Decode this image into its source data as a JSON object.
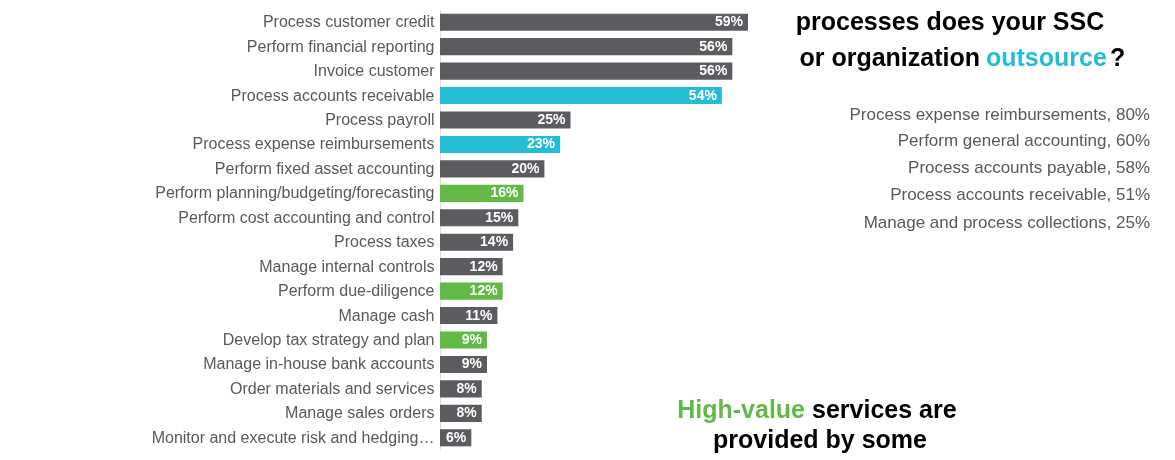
{
  "chart_data": {
    "type": "bar",
    "orientation": "horizontal",
    "categories": [
      "Process customer credit",
      "Perform financial reporting",
      "Invoice customer",
      "Process accounts receivable",
      "Process payroll",
      "Process expense reimbursements",
      "Perform fixed asset accounting",
      "Perform planning/budgeting/forecasting",
      "Perform cost accounting and control",
      "Process taxes",
      "Manage internal controls",
      "Perform due-diligence",
      "Manage cash",
      "Develop tax strategy and plan",
      "Manage in-house bank accounts",
      "Order materials and services",
      "Manage sales orders",
      "Monitor and execute risk and hedging…"
    ],
    "values": [
      59,
      56,
      56,
      54,
      25,
      23,
      20,
      16,
      15,
      14,
      12,
      12,
      11,
      9,
      9,
      8,
      8,
      6
    ],
    "value_labels": [
      "59%",
      "56%",
      "56%",
      "54%",
      "25%",
      "23%",
      "20%",
      "16%",
      "15%",
      "14%",
      "12%",
      "12%",
      "11%",
      "9%",
      "9%",
      "8%",
      "8%",
      "6%"
    ],
    "colors": [
      "#5b5c60",
      "#5b5c60",
      "#5b5c60",
      "#25bcd6",
      "#5b5c60",
      "#25bcd6",
      "#5b5c60",
      "#62b946",
      "#5b5c60",
      "#5b5c60",
      "#5b5c60",
      "#62b946",
      "#5b5c60",
      "#62b946",
      "#5b5c60",
      "#5b5c60",
      "#5b5c60",
      "#5b5c60"
    ],
    "annotations": [
      "processes does your SSC",
      "or organization",
      "outsource",
      "?",
      "Process expense reimbursements, 80%",
      "Perform general accounting, 60%",
      "Process accounts payable, 58%",
      "Process accounts receivable, 51%",
      "Manage and process collections, 25%",
      "High-value",
      "services are",
      "provided by some"
    ]
  }
}
